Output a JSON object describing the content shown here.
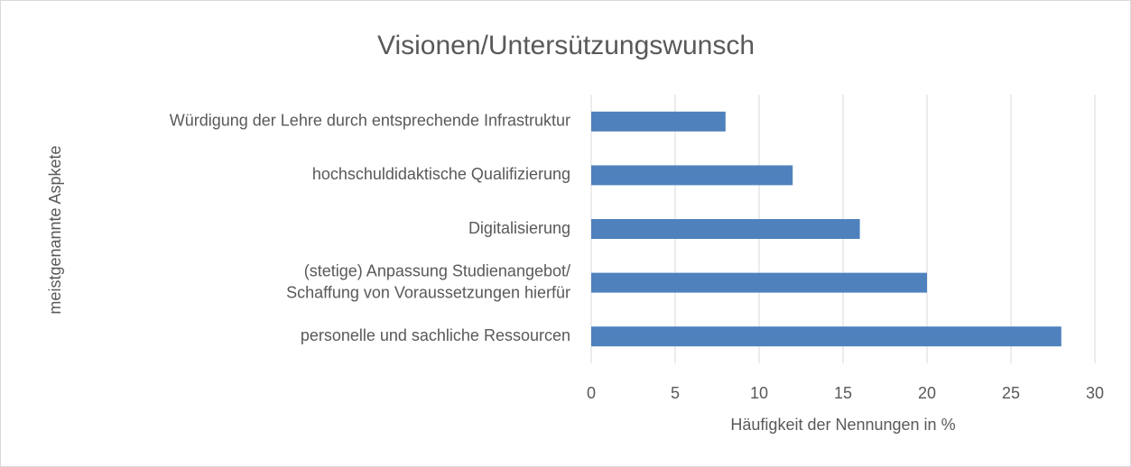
{
  "chart_data": {
    "type": "bar",
    "orientation": "horizontal",
    "title": "Visionen/Untersützungswunsch",
    "x_label": "Häufigkeit der Nennungen in %",
    "y_label": "meistgenannte Aspkete",
    "categories": [
      "Würdigung der Lehre durch entsprechende Infrastruktur",
      "hochschuldidaktische Qualifizierung",
      "Digitalisierung",
      "(stetige) Anpassung Studienangebot/\nSchaffung von Voraussetzungen hierfür",
      "personelle und sachliche Ressourcen"
    ],
    "values": [
      8,
      12,
      16,
      20,
      28
    ],
    "color": "#4f81bd",
    "xlim": [
      0,
      30
    ],
    "xticks": [
      0,
      5,
      10,
      15,
      20,
      25,
      30
    ],
    "grid": true
  }
}
